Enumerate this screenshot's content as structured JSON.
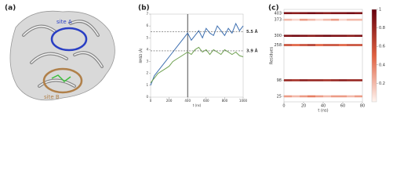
{
  "image_panel": {
    "label": "(a)",
    "site_a": "site A",
    "site_b": "site B"
  },
  "chart_data": [
    {
      "type": "line",
      "title": "(b)",
      "xlabel": "t (ns)",
      "ylabel": "RMSD (Å)",
      "x": [
        0,
        40,
        80,
        120,
        160,
        200,
        240,
        280,
        320,
        360,
        400,
        440,
        480,
        520,
        560,
        600,
        640,
        680,
        720,
        760,
        800,
        840,
        880,
        920,
        960,
        1000
      ],
      "series": [
        {
          "name": "site A",
          "color": "#3d6fb0",
          "values": [
            1.0,
            1.8,
            2.2,
            2.6,
            3.0,
            3.4,
            3.8,
            4.2,
            4.6,
            5.0,
            5.4,
            4.8,
            5.2,
            5.6,
            5.0,
            5.8,
            5.4,
            5.2,
            6.0,
            5.6,
            5.2,
            5.8,
            5.4,
            6.2,
            5.6,
            6.0
          ]
        },
        {
          "name": "site B",
          "color": "#6ea04f",
          "values": [
            1.2,
            1.6,
            2.0,
            2.2,
            2.4,
            2.6,
            3.0,
            3.2,
            3.4,
            3.6,
            3.8,
            3.6,
            4.0,
            4.2,
            3.8,
            4.0,
            3.6,
            4.0,
            3.8,
            3.6,
            4.0,
            3.8,
            3.6,
            3.8,
            3.5,
            3.4
          ]
        }
      ],
      "xlim": [
        0,
        1000
      ],
      "xticks": [
        0,
        200,
        400,
        600,
        800,
        1000
      ],
      "ylim": [
        0,
        7
      ],
      "yticks": [
        0,
        1,
        2,
        3,
        4,
        5,
        6,
        7
      ],
      "vline": 400,
      "hlines": [
        {
          "value": 5.5,
          "label": "5.5 Å"
        },
        {
          "value": 3.9,
          "label": "3.9 Å"
        }
      ]
    },
    {
      "type": "heatmap",
      "title": "(c)",
      "xlabel": "t (ns)",
      "ylabel": "Residues",
      "bins": [
        0,
        8,
        16,
        24,
        32,
        40,
        48,
        56,
        64,
        72,
        80
      ],
      "xlim": [
        0,
        80
      ],
      "xticks": [
        0,
        20,
        40,
        60,
        80
      ],
      "ylim": [
        0,
        420
      ],
      "yticks": [
        25,
        98,
        258,
        300,
        373,
        403
      ],
      "rows": [
        {
          "residue": 403,
          "values": [
            0.9,
            0.85,
            0.9,
            0.95,
            0.9,
            0.85,
            0.9,
            0.9,
            0.95,
            0.9
          ]
        },
        {
          "residue": 373,
          "values": [
            0.2,
            0.1,
            0.3,
            0.2,
            0.1,
            0.2,
            0.3,
            0.1,
            0.2,
            0.2
          ]
        },
        {
          "residue": 300,
          "values": [
            0.9,
            0.95,
            0.9,
            0.85,
            0.9,
            0.95,
            0.9,
            0.9,
            0.85,
            0.9
          ]
        },
        {
          "residue": 258,
          "values": [
            0.6,
            0.5,
            0.6,
            0.7,
            0.5,
            0.6,
            0.6,
            0.5,
            0.6,
            0.6
          ]
        },
        {
          "residue": 98,
          "values": [
            0.8,
            0.75,
            0.85,
            0.8,
            0.8,
            0.75,
            0.8,
            0.85,
            0.8,
            0.8
          ]
        },
        {
          "residue": 25,
          "values": [
            0.3,
            0.2,
            0.3,
            0.4,
            0.3,
            0.2,
            0.3,
            0.3,
            0.2,
            0.3
          ]
        }
      ],
      "clim": [
        0,
        1
      ],
      "cticks": [
        0.2,
        0.4,
        0.6,
        0.8,
        1.0
      ],
      "colormap": [
        "#fff5f0",
        "#e06040",
        "#67000d"
      ]
    }
  ]
}
